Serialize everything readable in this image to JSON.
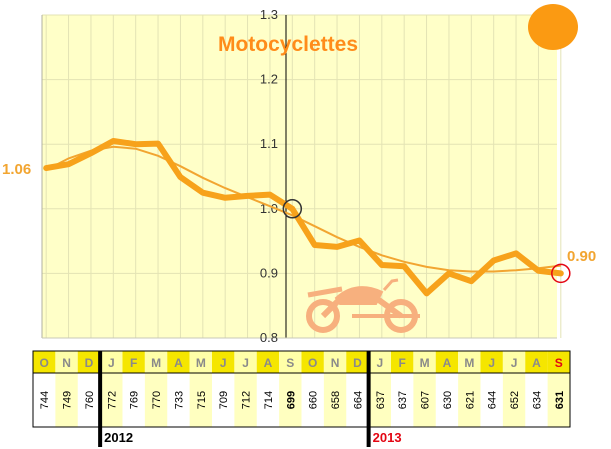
{
  "chart_data": {
    "type": "line",
    "title": "Motocyclettes",
    "ylim": [
      0.8,
      1.3
    ],
    "yticks": [
      "0.8",
      "0.9",
      "1.0",
      "1.1",
      "1.2",
      "1.3"
    ],
    "grid": true,
    "start_label": "1.06",
    "end_label": "0.90",
    "categories": [
      "O",
      "N",
      "D",
      "J",
      "F",
      "M",
      "A",
      "M",
      "J",
      "J",
      "A",
      "S",
      "O",
      "N",
      "D",
      "J",
      "F",
      "M",
      "A",
      "M",
      "J",
      "J",
      "A",
      "S"
    ],
    "counts": [
      "744",
      "749",
      "760",
      "772",
      "769",
      "770",
      "733",
      "715",
      "709",
      "712",
      "714",
      "699",
      "660",
      "658",
      "664",
      "637",
      "637",
      "607",
      "630",
      "621",
      "644",
      "652",
      "634",
      "631"
    ],
    "bold_counts": [
      11,
      23
    ],
    "years": [
      {
        "label": "2012",
        "start_index": 3,
        "color": "#000000"
      },
      {
        "label": "2013",
        "start_index": 15,
        "color": "#e30613"
      }
    ],
    "series": [
      {
        "values": [
          1.063,
          1.069,
          1.086,
          1.105,
          1.1,
          1.101,
          1.049,
          1.025,
          1.017,
          1.02,
          1.022,
          1.0,
          0.944,
          0.941,
          0.951,
          0.913,
          0.911,
          0.869,
          0.9,
          0.888,
          0.92,
          0.931,
          0.904,
          0.9
        ]
      },
      {
        "values": [
          1.06,
          1.078,
          1.09,
          1.096,
          1.093,
          1.082,
          1.066,
          1.048,
          1.032,
          1.018,
          1.004,
          0.99,
          0.973,
          0.956,
          0.941,
          0.928,
          0.918,
          0.91,
          0.905,
          0.903,
          0.903,
          0.905,
          0.908,
          0.912
        ]
      }
    ],
    "markers": [
      {
        "index": 11,
        "value": 1.0,
        "color": "#333333"
      },
      {
        "index": 23,
        "value": 0.9,
        "color": "#e30613"
      }
    ],
    "colors": {
      "plot_bg": "#ffffc8",
      "series_main": "#f7a21b",
      "series_trend": "#f2a531",
      "title": "#ff8c1a",
      "badge": "#fb9a12",
      "month_bg_dark": "#f5e600",
      "month_bg_light": "#ffffa8",
      "month_text": "#8a8a8a",
      "count_highlight": "#ffffc0",
      "year_2013": "#e30613",
      "motorcycle": "#f7b07e"
    },
    "icons": [
      "orange-circle-badge",
      "motorcycle-icon"
    ]
  }
}
